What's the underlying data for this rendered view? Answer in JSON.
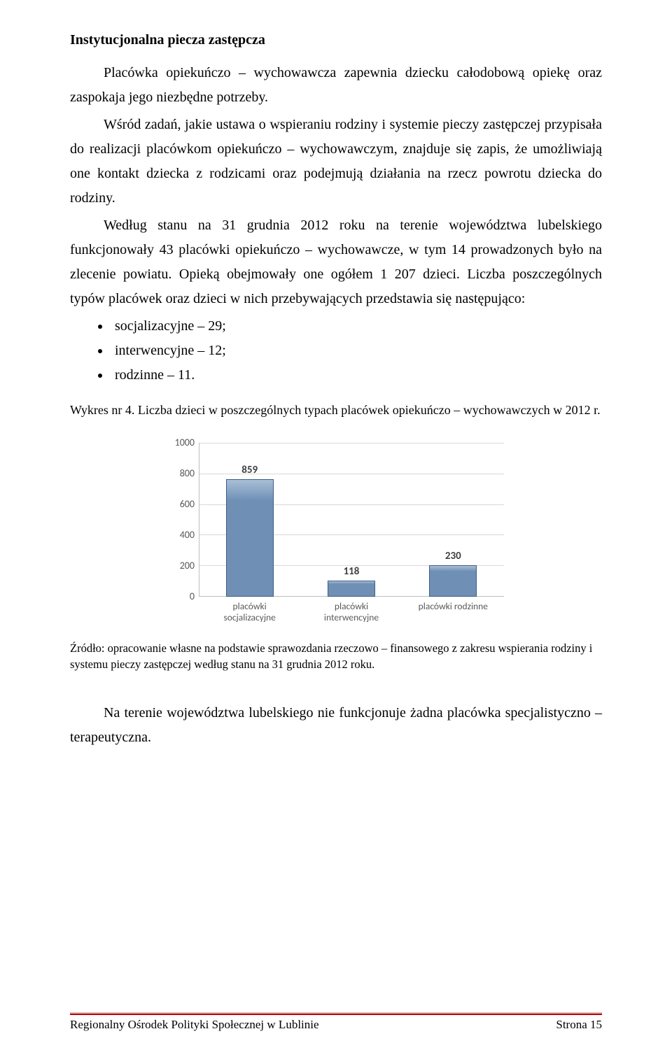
{
  "heading": "Instytucjonalna piecza zastępcza",
  "p1": "Placówka opiekuńczo – wychowawcza zapewnia dziecku całodobową opiekę oraz zaspokaja jego niezbędne potrzeby.",
  "p2": "Wśród zadań, jakie ustawa o wspieraniu rodziny i systemie pieczy zastępczej przypisała do realizacji placówkom opiekuńczo – wychowawczym, znajduje się zapis, że umożliwiają one kontakt dziecka z rodzicami oraz podejmują działania na rzecz powrotu dziecka do rodziny.",
  "p3": "Według stanu na 31 grudnia 2012 roku na terenie województwa lubelskiego funkcjonowały 43 placówki opiekuńczo – wychowawcze, w tym 14 prowadzonych było na zlecenie powiatu. Opieką obejmowały one ogółem 1 207 dzieci. Liczba poszczególnych typów placówek oraz dzieci w nich przebywających przedstawia się następująco:",
  "bullets": [
    "socjalizacyjne – 29;",
    "interwencyjne – 12;",
    "rodzinne – 11."
  ],
  "figcap": "Wykres nr 4. Liczba dzieci w poszczególnych typach placówek opiekuńczo – wychowawczych w 2012 r.",
  "chart": {
    "type": "bar",
    "categories": [
      "placówki socjalizacyjne",
      "placówki interwencyjne",
      "placówki rodzinne"
    ],
    "values": [
      859,
      118,
      230
    ],
    "bar_fill": "#6f8fb5",
    "bar_fill_light": "#a9bfd6",
    "bar_border": "#3e5d85",
    "bar_width": 0.6,
    "ylim_max": 1000,
    "ytick_step": 200,
    "yticks": [
      "1000",
      "800",
      "600",
      "400",
      "200",
      "0"
    ],
    "background_color": "#ffffff",
    "grid_color": "#d9d9d9",
    "axis_color": "#bfbfbf",
    "label_color": "#595959",
    "value_color": "#404040",
    "value_fontsize": 15,
    "label_fontsize": 13.5
  },
  "source": "Źródło: opracowanie własne na podstawie sprawozdania rzeczowo – finansowego z zakresu wspierania rodziny i systemu pieczy zastępczej według stanu na 31 grudnia 2012 roku.",
  "closing": "Na terenie województwa lubelskiego nie funkcjonuje żadna placówka specjalistyczno – terapeutyczna.",
  "footer_left": "Regionalny Ośrodek Polityki Społecznej w Lublinie",
  "footer_right": "Strona 15",
  "footer_rule_color": "#c00000"
}
